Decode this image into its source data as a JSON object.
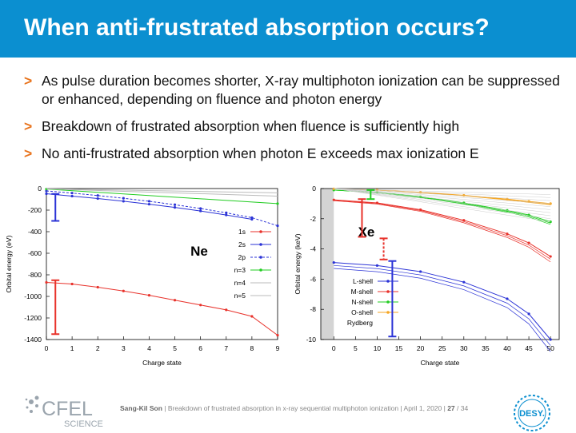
{
  "slide": {
    "title": "When anti-frustrated absorption occurs?",
    "bullets": [
      {
        "text": "As pulse duration becomes shorter, X-ray multiphoton ionization can be suppressed or enhanced, depending on fluence and photon energy"
      },
      {
        "text": "Breakdown of frustrated absorption when fluence is sufficiently high"
      },
      {
        "text": "No anti-frustrated absorption when photon E exceeds max ionization E"
      }
    ],
    "bullet_marker": ">"
  },
  "footer": {
    "author": "Sang-Kil Son",
    "talk": "Breakdown of frustrated absorption in x-ray sequential multiphoton ionization",
    "date": "April 1, 2020",
    "page": "27",
    "total": "/ 34",
    "logo_left": "CFEL",
    "logo_left_sub": "SCIENCE",
    "logo_right": "DESY."
  },
  "colors": {
    "title_bg": "#0b8fd0",
    "accent": "#e8731c"
  },
  "chart_data": [
    {
      "type": "line",
      "panel": "Ne",
      "annotation": "Ne",
      "xlabel": "Charge state",
      "ylabel": "Orbital energy (eV)",
      "xlim": [
        0,
        9
      ],
      "ylim": [
        -1400,
        0
      ],
      "xticks": [
        0,
        1,
        2,
        3,
        4,
        5,
        6,
        7,
        8,
        9
      ],
      "yticks": [
        0,
        -200,
        -400,
        -600,
        -800,
        -1000,
        -1200,
        -1400
      ],
      "legend": [
        "1s",
        "2s",
        "2p",
        "n=3",
        "n=4",
        "n=5"
      ],
      "series": [
        {
          "name": "1s",
          "color": "#e8322b",
          "x": [
            0,
            1,
            2,
            3,
            4,
            5,
            6,
            7,
            8,
            9
          ],
          "values": [
            -870,
            -885,
            -915,
            -950,
            -990,
            -1035,
            -1080,
            -1125,
            -1185,
            -1360
          ]
        },
        {
          "name": "2s",
          "color": "#2b33d6",
          "x": [
            0,
            1,
            2,
            3,
            4,
            5,
            6,
            7,
            8
          ],
          "values": [
            -48,
            -70,
            -93,
            -118,
            -145,
            -175,
            -208,
            -245,
            -285
          ]
        },
        {
          "name": "2p",
          "color": "#2b33d6",
          "x": [
            0,
            1,
            2,
            3,
            4,
            5,
            6,
            7,
            8,
            9
          ],
          "values": [
            -22,
            -42,
            -65,
            -90,
            -118,
            -150,
            -185,
            -225,
            -270,
            -345
          ]
        },
        {
          "name": "n=3",
          "color": "#22cc22",
          "x": [
            0,
            9
          ],
          "values": [
            -5,
            -140
          ]
        },
        {
          "name": "n=4",
          "color": "#bbbbbb",
          "x": [
            0,
            9
          ],
          "values": [
            -3,
            -70
          ]
        },
        {
          "name": "n=5",
          "color": "#bbbbbb",
          "x": [
            0,
            9
          ],
          "values": [
            -2,
            -40
          ]
        }
      ]
    },
    {
      "type": "line",
      "panel": "Xe",
      "annotation": "Xe",
      "xlabel": "Charge state",
      "ylabel": "Orbital energy (keV)",
      "xlim": [
        -3,
        52
      ],
      "ylim": [
        -10,
        0
      ],
      "xticks": [
        0,
        5,
        10,
        15,
        20,
        25,
        30,
        35,
        40,
        45,
        50
      ],
      "yticks": [
        0,
        -2,
        -4,
        -6,
        -8,
        -10
      ],
      "legend": [
        "L-shell",
        "M-shell",
        "N-shell",
        "O-shell",
        "Rydberg"
      ],
      "series": [
        {
          "name": "L-shell",
          "color": "#2b33d6",
          "x": [
            0,
            10,
            20,
            30,
            40,
            45,
            50
          ],
          "values": [
            -4.9,
            -5.1,
            -5.5,
            -6.2,
            -7.3,
            -8.3,
            -10.0
          ]
        },
        {
          "name": "M-shell",
          "color": "#e8322b",
          "x": [
            0,
            10,
            20,
            30,
            40,
            45,
            50
          ],
          "values": [
            -0.75,
            -0.95,
            -1.4,
            -2.1,
            -3.0,
            -3.6,
            -4.5
          ]
        },
        {
          "name": "N-shell",
          "color": "#22cc22",
          "x": [
            0,
            10,
            20,
            30,
            40,
            45,
            50
          ],
          "values": [
            -0.1,
            -0.25,
            -0.55,
            -0.95,
            -1.45,
            -1.75,
            -2.2
          ]
        },
        {
          "name": "O-shell",
          "color": "#f5a623",
          "x": [
            0,
            10,
            20,
            30,
            40,
            45,
            50
          ],
          "values": [
            -0.02,
            -0.1,
            -0.25,
            -0.45,
            -0.7,
            -0.85,
            -1.0
          ]
        },
        {
          "name": "Rydberg",
          "color": "#bbbbbb",
          "x": [
            0,
            50
          ],
          "values": [
            0,
            -0.4
          ]
        }
      ]
    }
  ]
}
